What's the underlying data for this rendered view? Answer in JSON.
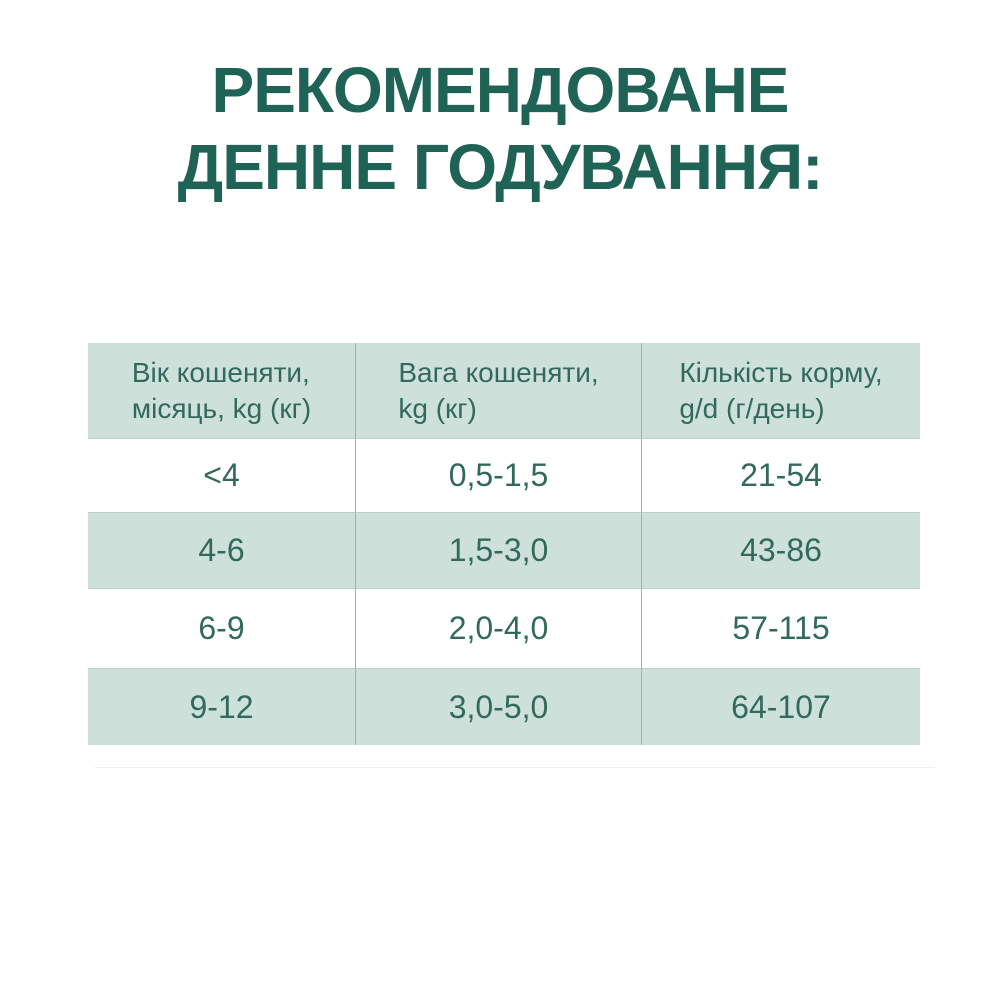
{
  "title": {
    "line1": "РЕКОМЕНДОВАНЕ",
    "line2": "ДЕННЕ ГОДУВАННЯ:"
  },
  "table": {
    "headers": [
      {
        "line1": "Вік кошеняти,",
        "line2": "місяць, kg (кг)"
      },
      {
        "line1": "Вага кошеняти,",
        "line2": "kg (кг)"
      },
      {
        "line1": "Кількість корму,",
        "line2": "g/d (г/день)"
      }
    ],
    "rows": [
      {
        "age": "<4",
        "weight": "0,5-1,5",
        "food": "21-54"
      },
      {
        "age": "4-6",
        "weight": "1,5-3,0",
        "food": "43-86"
      },
      {
        "age": "6-9",
        "weight": "2,0-4,0",
        "food": "57-115"
      },
      {
        "age": "9-12",
        "weight": "3,0-5,0",
        "food": "64-107"
      }
    ]
  },
  "chart_data": {
    "type": "table",
    "title": "РЕКОМЕНДОВАНЕ ДЕННЕ ГОДУВАННЯ:",
    "columns": [
      "Вік кошеняти, місяць, kg (кг)",
      "Вага кошеняти, kg (кг)",
      "Кількість корму, g/d (г/день)"
    ],
    "rows": [
      [
        "<4",
        "0,5-1,5",
        "21-54"
      ],
      [
        "4-6",
        "1,5-3,0",
        "43-86"
      ],
      [
        "6-9",
        "2,0-4,0",
        "57-115"
      ],
      [
        "9-12",
        "3,0-5,0",
        "64-107"
      ]
    ]
  },
  "colors": {
    "title_green": "#1e6355",
    "table_text_green": "#33695c",
    "row_teal": "#cde1da",
    "row_white": "#ffffff",
    "divider": "#9db1ab"
  }
}
